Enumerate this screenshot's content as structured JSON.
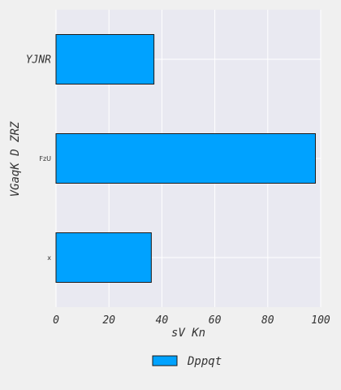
{
  "chart_data": {
    "type": "bar",
    "orientation": "horizontal",
    "categories": [
      "x",
      "FzU",
      "YJNR"
    ],
    "series": [
      {
        "name": "Dppqt",
        "values": [
          36,
          98,
          37
        ],
        "color": "#00a2ff"
      }
    ],
    "xlabel": "sV Kn",
    "ylabel": "VGaqK D ZRZ",
    "xlim": [
      0,
      100
    ],
    "xticks": [
      0,
      20,
      40,
      60,
      80,
      100
    ],
    "grid": true,
    "legend_position": "bottom-center",
    "colors": {
      "plot_background": "#e9e9f1",
      "figure_background": "#f0f0f0",
      "grid": "#ffffff",
      "bar_edge": "#1a1a1a"
    }
  }
}
